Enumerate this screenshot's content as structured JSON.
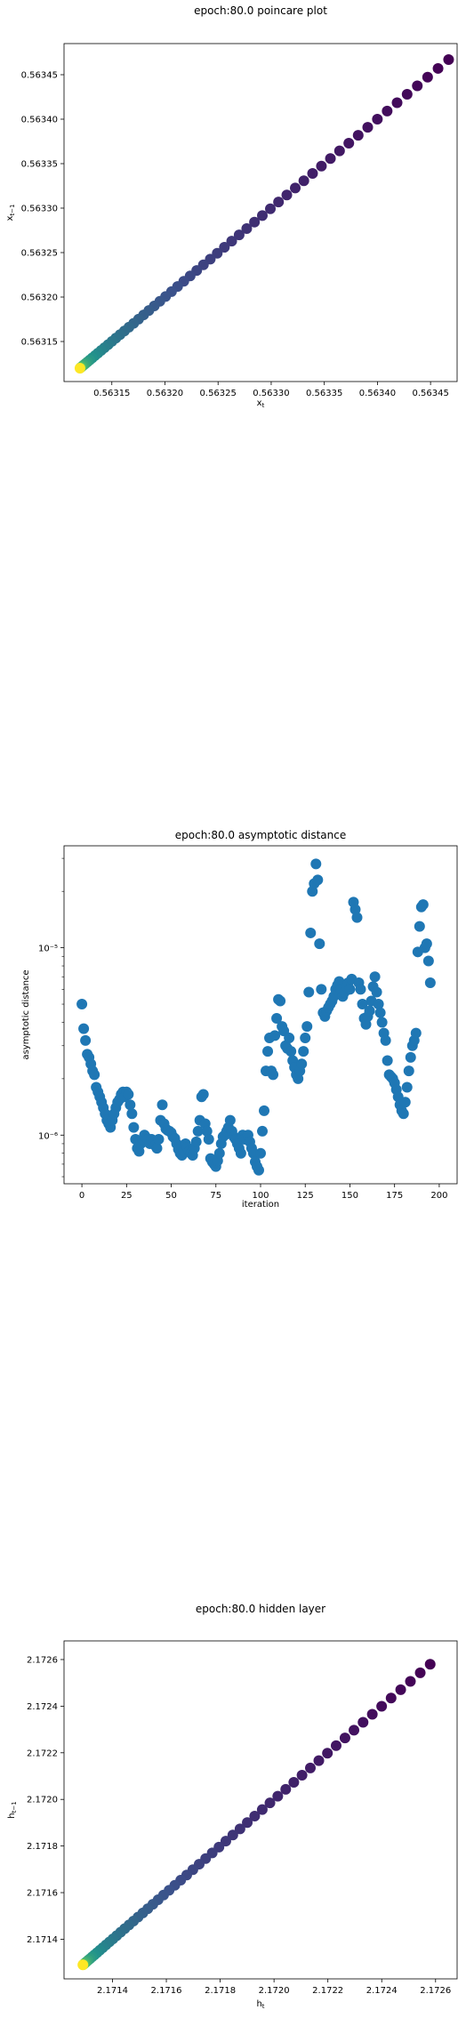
{
  "chart_data": [
    {
      "type": "scatter",
      "title": "epoch:80.0 poincare plot",
      "xlabel": "x_t",
      "ylabel": "x_{t-1}",
      "xlim": [
        0.563105,
        0.563475
      ],
      "ylim": [
        0.563105,
        0.563485
      ],
      "xticks": [
        "0.56315",
        "0.56320",
        "0.56325",
        "0.56330",
        "0.56335",
        "0.56340",
        "0.56345"
      ],
      "yticks": [
        "0.56315",
        "0.56320",
        "0.56325",
        "0.56330",
        "0.56335",
        "0.56340",
        "0.56345"
      ],
      "colormap": "viridis",
      "x0": 0.56312,
      "x1": 0.563467,
      "n_points": 60
    },
    {
      "type": "scatter",
      "title": "epoch:80.0 asymptotic distance",
      "xlabel": "iteration",
      "ylabel": "asymptotic distance",
      "yscale": "log",
      "xlim": [
        -10,
        210
      ],
      "ylim": [
        5.5e-07,
        3.5e-05
      ],
      "xticks": [
        "0",
        "25",
        "50",
        "75",
        "100",
        "125",
        "150",
        "175",
        "200"
      ],
      "yticks": [
        "10⁻⁶",
        "10⁻⁵"
      ],
      "color": "#1f77b4",
      "values": [
        5e-06,
        3.7e-06,
        3.2e-06,
        2.7e-06,
        2.6e-06,
        2.4e-06,
        2.2e-06,
        2.1e-06,
        1.8e-06,
        1.7e-06,
        1.6e-06,
        1.5e-06,
        1.4e-06,
        1.3e-06,
        1.2e-06,
        1.15e-06,
        1.1e-06,
        1.2e-06,
        1.3e-06,
        1.4e-06,
        1.5e-06,
        1.55e-06,
        1.65e-06,
        1.7e-06,
        1.6e-06,
        1.7e-06,
        1.65e-06,
        1.45e-06,
        1.3e-06,
        1.1e-06,
        9.5e-07,
        8.5e-07,
        8.2e-07,
        9e-07,
        9.5e-07,
        1e-06,
        9.7e-07,
        9.5e-07,
        9e-07,
        9.5e-07,
        9.2e-07,
        8.8e-07,
        8.5e-07,
        9.5e-07,
        1.2e-06,
        1.45e-06,
        1.15e-06,
        1.08e-06,
        1.06e-06,
        1.05e-06,
        1.03e-06,
        9.8e-07,
        9.6e-07,
        9e-07,
        8.4e-07,
        8e-07,
        7.8e-07,
        8.2e-07,
        9e-07,
        8.6e-07,
        8.2e-07,
        8e-07,
        7.8e-07,
        8.5e-07,
        9.2e-07,
        1.05e-06,
        1.2e-06,
        1.6e-06,
        1.65e-06,
        1.15e-06,
        1.05e-06,
        9.5e-07,
        7.5e-07,
        7.2e-07,
        7e-07,
        6.8e-07,
        7.3e-07,
        8e-07,
        9e-07,
        9.8e-07,
        1e-06,
        1.05e-06,
        1.1e-06,
        1.2e-06,
        1.05e-06,
        9.8e-07,
        9.5e-07,
        9e-07,
        8.5e-07,
        8e-07,
        1e-06,
        9.5e-07,
        9.5e-07,
        1e-06,
        9.2e-07,
        8.5e-07,
        8e-07,
        7.2e-07,
        6.8e-07,
        6.5e-07,
        8e-07,
        1.05e-06,
        1.35e-06,
        2.2e-06,
        2.8e-06,
        3.3e-06,
        2.2e-06,
        2.1e-06,
        3.4e-06,
        4.2e-06,
        5.3e-06,
        5.2e-06,
        3.8e-06,
        3.6e-06,
        3e-06,
        2.9e-06,
        3.3e-06,
        2.8e-06,
        2.5e-06,
        2.3e-06,
        2.1e-06,
        2e-06,
        2.2e-06,
        2.4e-06,
        2.8e-06,
        3.3e-06,
        3.8e-06,
        5.8e-06,
        1.2e-05,
        2e-05,
        2.2e-05,
        2.8e-05,
        2.3e-05,
        1.05e-05,
        6e-06,
        4.5e-06,
        4.3e-06,
        4.6e-06,
        4.8e-06,
        5e-06,
        5.2e-06,
        5.5e-06,
        6e-06,
        6.3e-06,
        6.6e-06,
        6e-06,
        5.5e-06,
        5.8e-06,
        6.2e-06,
        6.5e-06,
        6e-06,
        6.8e-06,
        1.75e-05,
        1.6e-05,
        1.45e-05,
        6.5e-06,
        6e-06,
        5e-06,
        4.2e-06,
        3.9e-06,
        4.3e-06,
        4.6e-06,
        5.2e-06,
        6.2e-06,
        7e-06,
        5.8e-06,
        5e-06,
        4.5e-06,
        4e-06,
        3.5e-06,
        3.2e-06,
        2.5e-06,
        2.1e-06,
        2.05e-06,
        2e-06,
        1.9e-06,
        1.75e-06,
        1.6e-06,
        1.45e-06,
        1.35e-06,
        1.3e-06,
        1.5e-06,
        1.8e-06,
        2.2e-06,
        2.6e-06,
        3e-06,
        3.2e-06,
        3.5e-06,
        9.5e-06,
        1.3e-05,
        1.65e-05,
        1.7e-05,
        1e-05,
        1.05e-05,
        8.5e-06,
        6.5e-06
      ]
    },
    {
      "type": "scatter",
      "title": "epoch:80.0 hidden layer",
      "xlabel": "h_t",
      "ylabel": "h_{t-1}",
      "xlim": [
        2.17122,
        2.17268
      ],
      "ylim": [
        2.17123,
        2.17268
      ],
      "xticks": [
        "2.1714",
        "2.1716",
        "2.1718",
        "2.1720",
        "2.1722",
        "2.1724",
        "2.1726"
      ],
      "yticks": [
        "2.1714",
        "2.1716",
        "2.1718",
        "2.1720",
        "2.1722",
        "2.1724",
        "2.1726"
      ],
      "colormap": "viridis",
      "x0": 2.17129,
      "x1": 2.17258,
      "n_points": 60
    }
  ]
}
